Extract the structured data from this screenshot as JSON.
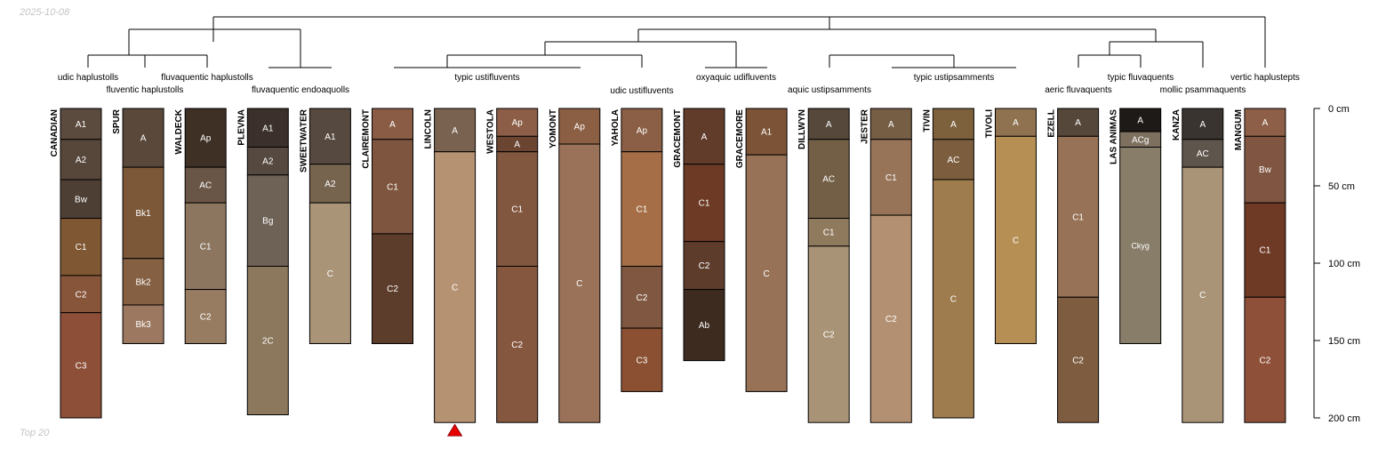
{
  "header": {
    "date": "2025-10-08"
  },
  "footer": {
    "caption": "Top 20"
  },
  "colors": {
    "dendrogram_line": "#000000",
    "horizon_border": "#000000",
    "marker": "#e60000"
  },
  "depth_axis": {
    "ticks": [
      {
        "depth": 0,
        "label": "0 cm"
      },
      {
        "depth": 50,
        "label": "50 cm"
      },
      {
        "depth": 100,
        "label": "100 cm"
      },
      {
        "depth": 150,
        "label": "150 cm"
      },
      {
        "depth": 200,
        "label": "200 cm"
      }
    ],
    "max_depth": 200
  },
  "marker": {
    "profile": "LINCOLN",
    "shape": "triangle-up"
  },
  "taxa_labels": [
    "udic haplustolls",
    "fluventic haplustolls",
    "fluvaquentic haplustolls",
    "fluvaquentic endoaquolls",
    "typic ustifluvents",
    "udic ustifluvents",
    "oxyaquic udifluvents",
    "aquic ustipsamments",
    "typic ustipsamments",
    "aeric fluvaquents",
    "typic fluvaquents",
    "mollic psammaquents",
    "vertic haplustepts"
  ],
  "profiles": [
    {
      "name": "CANADIAN",
      "horizons": [
        {
          "name": "A1",
          "top": 0,
          "bottom": 20,
          "color": "#5b4a3e"
        },
        {
          "name": "A2",
          "top": 20,
          "bottom": 46,
          "color": "#57463a"
        },
        {
          "name": "Bw",
          "top": 46,
          "bottom": 71,
          "color": "#4e3f35"
        },
        {
          "name": "C1",
          "top": 71,
          "bottom": 108,
          "color": "#805733"
        },
        {
          "name": "C2",
          "top": 108,
          "bottom": 132,
          "color": "#87553a"
        },
        {
          "name": "C3",
          "top": 132,
          "bottom": 200,
          "color": "#8e4f38"
        }
      ]
    },
    {
      "name": "SPUR",
      "horizons": [
        {
          "name": "A",
          "top": 0,
          "bottom": 38,
          "color": "#5a483b"
        },
        {
          "name": "Bk1",
          "top": 38,
          "bottom": 97,
          "color": "#7c5839"
        },
        {
          "name": "Bk2",
          "top": 97,
          "bottom": 127,
          "color": "#856043"
        },
        {
          "name": "Bk3",
          "top": 127,
          "bottom": 152,
          "color": "#9c7860"
        }
      ]
    },
    {
      "name": "WALDECK",
      "horizons": [
        {
          "name": "Ap",
          "top": 0,
          "bottom": 38,
          "color": "#3f3026"
        },
        {
          "name": "AC",
          "top": 38,
          "bottom": 61,
          "color": "#6a5646"
        },
        {
          "name": "C1",
          "top": 61,
          "bottom": 117,
          "color": "#8c7660"
        },
        {
          "name": "C2",
          "top": 117,
          "bottom": 152,
          "color": "#977c62"
        }
      ]
    },
    {
      "name": "PLEVNA",
      "horizons": [
        {
          "name": "A1",
          "top": 0,
          "bottom": 25,
          "color": "#3b302b"
        },
        {
          "name": "A2",
          "top": 25,
          "bottom": 43,
          "color": "#56493f"
        },
        {
          "name": "Bg",
          "top": 43,
          "bottom": 102,
          "color": "#6e6155"
        },
        {
          "name": "2C",
          "top": 102,
          "bottom": 198,
          "color": "#8b785d"
        }
      ]
    },
    {
      "name": "SWEETWATER",
      "horizons": [
        {
          "name": "A1",
          "top": 0,
          "bottom": 36,
          "color": "#56493f"
        },
        {
          "name": "A2",
          "top": 36,
          "bottom": 61,
          "color": "#76644f"
        },
        {
          "name": "C",
          "top": 61,
          "bottom": 152,
          "color": "#a99478"
        }
      ]
    },
    {
      "name": "CLAIREMONT",
      "horizons": [
        {
          "name": "A",
          "top": 0,
          "bottom": 20,
          "color": "#8a5c45"
        },
        {
          "name": "C1",
          "top": 20,
          "bottom": 81,
          "color": "#7e563f"
        },
        {
          "name": "C2",
          "top": 81,
          "bottom": 152,
          "color": "#5c3c2a"
        }
      ]
    },
    {
      "name": "LINCOLN",
      "horizons": [
        {
          "name": "A",
          "top": 0,
          "bottom": 28,
          "color": "#796250"
        },
        {
          "name": "C",
          "top": 28,
          "bottom": 203,
          "color": "#b59272"
        }
      ]
    },
    {
      "name": "WESTOLA",
      "horizons": [
        {
          "name": "Ap",
          "top": 0,
          "bottom": 18,
          "color": "#8c5e47"
        },
        {
          "name": "A",
          "top": 18,
          "bottom": 28,
          "color": "#6b4532"
        },
        {
          "name": "C1",
          "top": 28,
          "bottom": 102,
          "color": "#82573f"
        },
        {
          "name": "C2",
          "top": 102,
          "bottom": 203,
          "color": "#86573f"
        }
      ]
    },
    {
      "name": "YOMONT",
      "horizons": [
        {
          "name": "Ap",
          "top": 0,
          "bottom": 23,
          "color": "#8b5f44"
        },
        {
          "name": "C",
          "top": 23,
          "bottom": 203,
          "color": "#9a725a"
        }
      ]
    },
    {
      "name": "YAHOLA",
      "horizons": [
        {
          "name": "Ap",
          "top": 0,
          "bottom": 28,
          "color": "#8b5e46"
        },
        {
          "name": "C1",
          "top": 28,
          "bottom": 102,
          "color": "#a56e47"
        },
        {
          "name": "C2",
          "top": 102,
          "bottom": 142,
          "color": "#805740"
        },
        {
          "name": "C3",
          "top": 142,
          "bottom": 183,
          "color": "#8b5032"
        }
      ]
    },
    {
      "name": "GRACEMONT",
      "horizons": [
        {
          "name": "A",
          "top": 0,
          "bottom": 36,
          "color": "#623c2b"
        },
        {
          "name": "C1",
          "top": 36,
          "bottom": 86,
          "color": "#6c3a25"
        },
        {
          "name": "C2",
          "top": 86,
          "bottom": 117,
          "color": "#5e3c2b"
        },
        {
          "name": "Ab",
          "top": 117,
          "bottom": 163,
          "color": "#3d2b20"
        }
      ]
    },
    {
      "name": "GRACEMORE",
      "horizons": [
        {
          "name": "A1",
          "top": 0,
          "bottom": 30,
          "color": "#7c5337"
        },
        {
          "name": "C",
          "top": 30,
          "bottom": 183,
          "color": "#977256"
        }
      ]
    },
    {
      "name": "DILLWYN",
      "horizons": [
        {
          "name": "A",
          "top": 0,
          "bottom": 20,
          "color": "#56483b"
        },
        {
          "name": "AC",
          "top": 20,
          "bottom": 71,
          "color": "#735e46"
        },
        {
          "name": "C1",
          "top": 71,
          "bottom": 89,
          "color": "#907a5e"
        },
        {
          "name": "C2",
          "top": 89,
          "bottom": 203,
          "color": "#a89376"
        }
      ]
    },
    {
      "name": "JESTER",
      "horizons": [
        {
          "name": "A",
          "top": 0,
          "bottom": 20,
          "color": "#765e45"
        },
        {
          "name": "C1",
          "top": 20,
          "bottom": 69,
          "color": "#977357"
        },
        {
          "name": "C2",
          "top": 69,
          "bottom": 203,
          "color": "#b39072"
        }
      ]
    },
    {
      "name": "TIVIN",
      "horizons": [
        {
          "name": "A",
          "top": 0,
          "bottom": 20,
          "color": "#7d603c"
        },
        {
          "name": "AC",
          "top": 20,
          "bottom": 46,
          "color": "#7c5e3e"
        },
        {
          "name": "C",
          "top": 46,
          "bottom": 200,
          "color": "#9e7c4e"
        }
      ]
    },
    {
      "name": "TIVOLI",
      "horizons": [
        {
          "name": "A",
          "top": 0,
          "bottom": 18,
          "color": "#8f7250"
        },
        {
          "name": "C",
          "top": 18,
          "bottom": 152,
          "color": "#b68f55"
        }
      ]
    },
    {
      "name": "EZELL",
      "horizons": [
        {
          "name": "A",
          "top": 0,
          "bottom": 18,
          "color": "#56473b"
        },
        {
          "name": "C1",
          "top": 18,
          "bottom": 122,
          "color": "#977256"
        },
        {
          "name": "C2",
          "top": 122,
          "bottom": 203,
          "color": "#7e5c40"
        }
      ]
    },
    {
      "name": "LAS ANIMAS",
      "horizons": [
        {
          "name": "A",
          "top": 0,
          "bottom": 15,
          "color": "#1d1a17"
        },
        {
          "name": "ACg",
          "top": 15,
          "bottom": 25,
          "color": "#7d705f"
        },
        {
          "name": "Ckyg",
          "top": 25,
          "bottom": 152,
          "color": "#877d68"
        }
      ]
    },
    {
      "name": "KANZA",
      "horizons": [
        {
          "name": "A",
          "top": 0,
          "bottom": 20,
          "color": "#3a3430"
        },
        {
          "name": "AC",
          "top": 20,
          "bottom": 38,
          "color": "#5e554c"
        },
        {
          "name": "C",
          "top": 38,
          "bottom": 203,
          "color": "#a99478"
        }
      ]
    },
    {
      "name": "MANGUM",
      "horizons": [
        {
          "name": "A",
          "top": 0,
          "bottom": 18,
          "color": "#8e5f48"
        },
        {
          "name": "Bw",
          "top": 18,
          "bottom": 61,
          "color": "#805642"
        },
        {
          "name": "C1",
          "top": 61,
          "bottom": 122,
          "color": "#6e3a25"
        },
        {
          "name": "C2",
          "top": 122,
          "bottom": 203,
          "color": "#8e5038"
        }
      ]
    }
  ]
}
